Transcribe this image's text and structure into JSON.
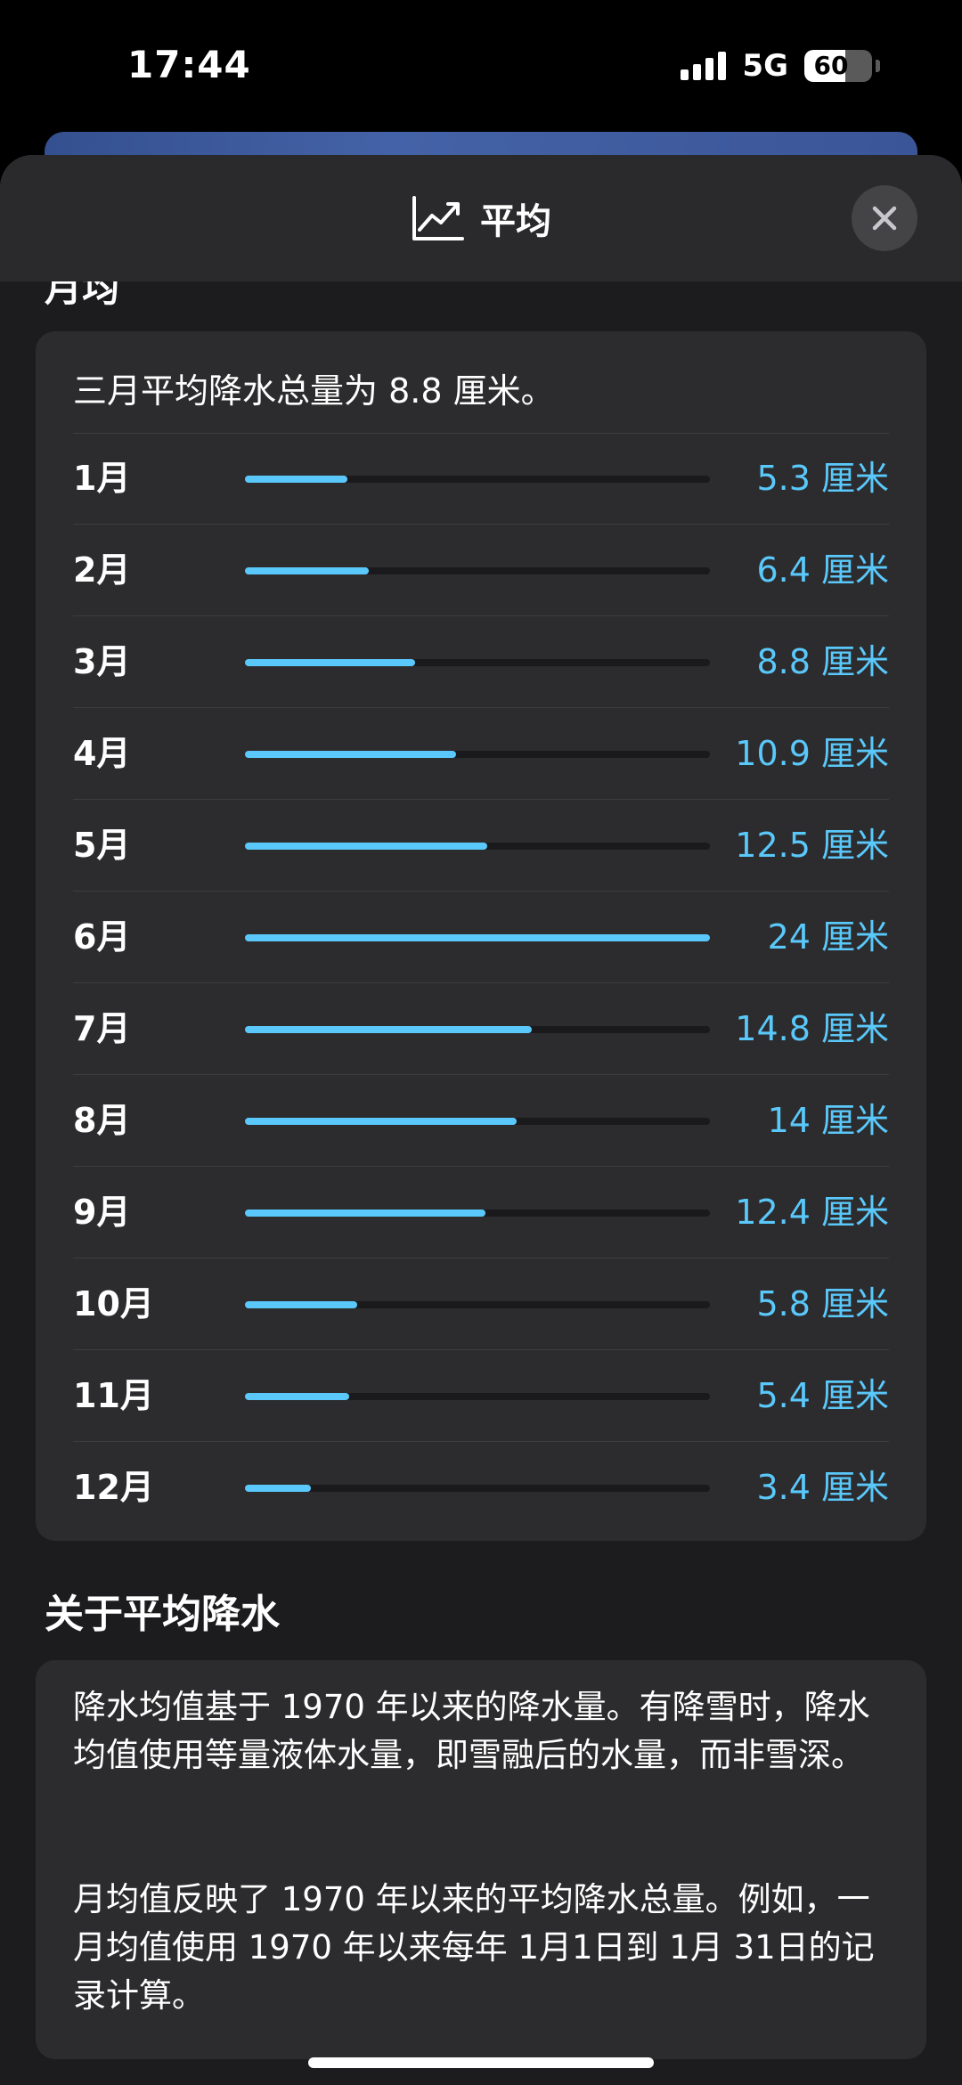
{
  "status_bar": {
    "time": "17:44",
    "network": "5G",
    "battery": "60",
    "battery_level": 0.6
  },
  "header": {
    "title": "平均",
    "icon": "trend-chart-icon",
    "close_icon": "close-icon"
  },
  "monthly": {
    "heading": "月均",
    "summary": "三月平均降水总量为 8.8 厘米。",
    "max_value": 24,
    "accent_color": "#5ac8fa",
    "rows": [
      {
        "month": "1月",
        "value": 5.3,
        "label": "5.3 厘米"
      },
      {
        "month": "2月",
        "value": 6.4,
        "label": "6.4 厘米"
      },
      {
        "month": "3月",
        "value": 8.8,
        "label": "8.8 厘米"
      },
      {
        "month": "4月",
        "value": 10.9,
        "label": "10.9 厘米"
      },
      {
        "month": "5月",
        "value": 12.5,
        "label": "12.5 厘米"
      },
      {
        "month": "6月",
        "value": 24,
        "label": "24 厘米"
      },
      {
        "month": "7月",
        "value": 14.8,
        "label": "14.8 厘米"
      },
      {
        "month": "8月",
        "value": 14,
        "label": "14 厘米"
      },
      {
        "month": "9月",
        "value": 12.4,
        "label": "12.4 厘米"
      },
      {
        "month": "10月",
        "value": 5.8,
        "label": "5.8 厘米"
      },
      {
        "month": "11月",
        "value": 5.4,
        "label": "5.4 厘米"
      },
      {
        "month": "12月",
        "value": 3.4,
        "label": "3.4 厘米"
      }
    ]
  },
  "about": {
    "heading": "关于平均降水",
    "paragraph1": "降水均值基于 1970 年以来的降水量。有降雪时，降水均值使用等量液体水量，即雪融后的水量，而非雪深。",
    "paragraph2": "月均值反映了 1970 年以来的平均降水总量。例如，一月均值使用 1970 年以来每年 1月1日到 1月 31日的记录计算。"
  }
}
